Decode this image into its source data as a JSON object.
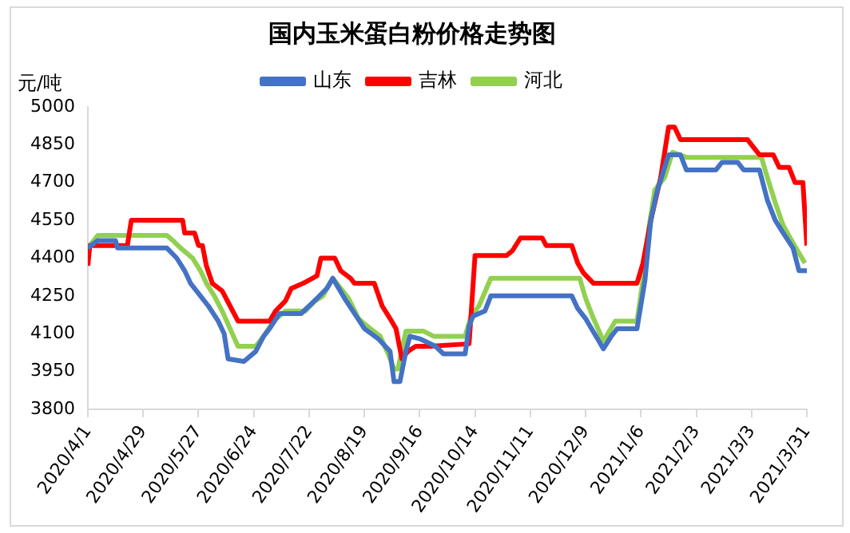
{
  "chart_data": {
    "type": "line",
    "title": "国内玉米蛋白粉价格走势图",
    "ylabel": "元/吨",
    "legend": "top",
    "grid": false,
    "marker": "none",
    "line_style": "solid",
    "xlim": [
      "2020-04-01",
      "2021-03-31"
    ],
    "xticks": [
      {
        "value": "2020-04-01",
        "label": "2020/4/1"
      },
      {
        "value": "2020-04-29",
        "label": "2020/4/29"
      },
      {
        "value": "2020-05-27",
        "label": "2020/5/27"
      },
      {
        "value": "2020-06-24",
        "label": "2020/6/24"
      },
      {
        "value": "2020-07-22",
        "label": "2020/7/22"
      },
      {
        "value": "2020-08-19",
        "label": "2020/8/19"
      },
      {
        "value": "2020-09-16",
        "label": "2020/9/16"
      },
      {
        "value": "2020-10-14",
        "label": "2020/10/14"
      },
      {
        "value": "2020-11-11",
        "label": "2020/11/11"
      },
      {
        "value": "2020-12-09",
        "label": "2020/12/9"
      },
      {
        "value": "2021-01-06",
        "label": "2021/1/6"
      },
      {
        "value": "2021-02-03",
        "label": "2021/2/3"
      },
      {
        "value": "2021-03-03",
        "label": "2021/3/3"
      },
      {
        "value": "2021-03-31",
        "label": "2021/3/31"
      }
    ],
    "ylim": [
      3800,
      5000
    ],
    "yticks": [
      3800,
      3950,
      4100,
      4250,
      4400,
      4550,
      4700,
      4850,
      5000
    ],
    "series": [
      {
        "name": "山东",
        "color": "#4472c4",
        "x": [
          "2020-04-01",
          "2020-04-06",
          "2020-04-15",
          "2020-04-16",
          "2020-05-11",
          "2020-05-16",
          "2020-05-20",
          "2020-05-23",
          "2020-05-28",
          "2020-06-01",
          "2020-06-06",
          "2020-06-09",
          "2020-06-11",
          "2020-06-19",
          "2020-06-25",
          "2020-06-29",
          "2020-07-02",
          "2020-07-07",
          "2020-07-18",
          "2020-07-22",
          "2020-07-26",
          "2020-07-31",
          "2020-08-03",
          "2020-08-06",
          "2020-08-09",
          "2020-08-14",
          "2020-08-19",
          "2020-08-26",
          "2020-09-01",
          "2020-09-03",
          "2020-09-06",
          "2020-09-09",
          "2020-09-11",
          "2020-09-16",
          "2020-09-24",
          "2020-09-28",
          "2020-10-09",
          "2020-10-11",
          "2020-10-13",
          "2020-10-19",
          "2020-10-22",
          "2020-10-25",
          "2020-12-02",
          "2020-12-05",
          "2020-12-09",
          "2020-12-12",
          "2020-12-15",
          "2020-12-18",
          "2020-12-22",
          "2020-12-25",
          "2021-01-04",
          "2021-01-08",
          "2021-01-11",
          "2021-01-14",
          "2021-01-20",
          "2021-01-26",
          "2021-01-29",
          "2021-02-13",
          "2021-02-16",
          "2021-02-24",
          "2021-02-27",
          "2021-03-07",
          "2021-03-11",
          "2021-03-15",
          "2021-03-19",
          "2021-03-24",
          "2021-03-27",
          "2021-03-31"
        ],
        "values": [
          4440,
          4470,
          4470,
          4440,
          4440,
          4400,
          4350,
          4300,
          4250,
          4210,
          4150,
          4100,
          4000,
          3990,
          4030,
          4090,
          4120,
          4180,
          4180,
          4210,
          4240,
          4280,
          4320,
          4280,
          4240,
          4180,
          4120,
          4080,
          4030,
          3910,
          3910,
          4030,
          4090,
          4080,
          4050,
          4020,
          4020,
          4130,
          4170,
          4190,
          4250,
          4250,
          4250,
          4200,
          4160,
          4120,
          4080,
          4040,
          4090,
          4120,
          4120,
          4310,
          4550,
          4660,
          4810,
          4810,
          4750,
          4750,
          4780,
          4780,
          4750,
          4750,
          4630,
          4550,
          4500,
          4440,
          4350,
          4350
        ]
      },
      {
        "name": "吉林",
        "color": "#ff0000",
        "x": [
          "2020-04-01",
          "2020-04-02",
          "2020-04-21",
          "2020-04-23",
          "2020-05-19",
          "2020-05-20",
          "2020-05-25",
          "2020-05-27",
          "2020-05-29",
          "2020-05-31",
          "2020-06-03",
          "2020-06-08",
          "2020-06-12",
          "2020-06-16",
          "2020-07-02",
          "2020-07-05",
          "2020-07-10",
          "2020-07-13",
          "2020-07-19",
          "2020-07-26",
          "2020-07-28",
          "2020-08-04",
          "2020-08-07",
          "2020-08-12",
          "2020-08-14",
          "2020-08-24",
          "2020-08-28",
          "2020-09-01",
          "2020-09-04",
          "2020-09-07",
          "2020-09-10",
          "2020-09-14",
          "2020-09-21",
          "2020-10-11",
          "2020-10-14",
          "2020-10-30",
          "2020-11-02",
          "2020-11-06",
          "2020-11-17",
          "2020-11-19",
          "2020-12-02",
          "2020-12-05",
          "2020-12-08",
          "2020-12-13",
          "2021-01-04",
          "2021-01-07",
          "2021-01-11",
          "2021-01-16",
          "2021-01-20",
          "2021-01-23",
          "2021-01-26",
          "2021-03-01",
          "2021-03-04",
          "2021-03-07",
          "2021-03-14",
          "2021-03-17",
          "2021-03-22",
          "2021-03-25",
          "2021-03-29",
          "2021-03-31"
        ],
        "values": [
          4370,
          4450,
          4450,
          4550,
          4550,
          4500,
          4500,
          4450,
          4450,
          4370,
          4300,
          4270,
          4210,
          4150,
          4150,
          4190,
          4230,
          4280,
          4300,
          4330,
          4400,
          4400,
          4350,
          4320,
          4300,
          4300,
          4210,
          4160,
          4120,
          4000,
          4030,
          4050,
          4050,
          4060,
          4410,
          4410,
          4430,
          4480,
          4480,
          4450,
          4450,
          4380,
          4340,
          4300,
          4300,
          4380,
          4550,
          4720,
          4920,
          4920,
          4870,
          4870,
          4840,
          4810,
          4810,
          4760,
          4760,
          4700,
          4700,
          4450
        ]
      },
      {
        "name": "河北",
        "color": "#92d050",
        "x": [
          "2020-04-01",
          "2020-04-06",
          "2020-05-11",
          "2020-05-14",
          "2020-05-18",
          "2020-05-24",
          "2020-05-28",
          "2020-05-31",
          "2020-06-04",
          "2020-06-08",
          "2020-06-12",
          "2020-06-16",
          "2020-06-25",
          "2020-06-29",
          "2020-07-04",
          "2020-07-10",
          "2020-07-20",
          "2020-07-25",
          "2020-07-29",
          "2020-08-03",
          "2020-08-07",
          "2020-08-11",
          "2020-08-16",
          "2020-08-22",
          "2020-08-27",
          "2020-08-31",
          "2020-09-03",
          "2020-09-05",
          "2020-09-09",
          "2020-09-18",
          "2020-09-23",
          "2020-10-09",
          "2020-10-12",
          "2020-10-16",
          "2020-10-22",
          "2020-12-06",
          "2020-12-09",
          "2020-12-13",
          "2020-12-18",
          "2020-12-24",
          "2021-01-04",
          "2021-01-07",
          "2021-01-10",
          "2021-01-13",
          "2021-01-18",
          "2021-01-22",
          "2021-01-29",
          "2021-03-08",
          "2021-03-11",
          "2021-03-15",
          "2021-03-19",
          "2021-03-24",
          "2021-03-30"
        ],
        "values": [
          4440,
          4490,
          4490,
          4470,
          4440,
          4400,
          4350,
          4300,
          4250,
          4190,
          4120,
          4050,
          4050,
          4090,
          4150,
          4190,
          4190,
          4230,
          4250,
          4320,
          4280,
          4240,
          4160,
          4120,
          4090,
          4020,
          3960,
          3960,
          4110,
          4110,
          4090,
          4090,
          4170,
          4210,
          4320,
          4320,
          4240,
          4160,
          4070,
          4150,
          4150,
          4310,
          4520,
          4670,
          4720,
          4820,
          4800,
          4800,
          4720,
          4620,
          4530,
          4460,
          4380
        ]
      }
    ]
  }
}
